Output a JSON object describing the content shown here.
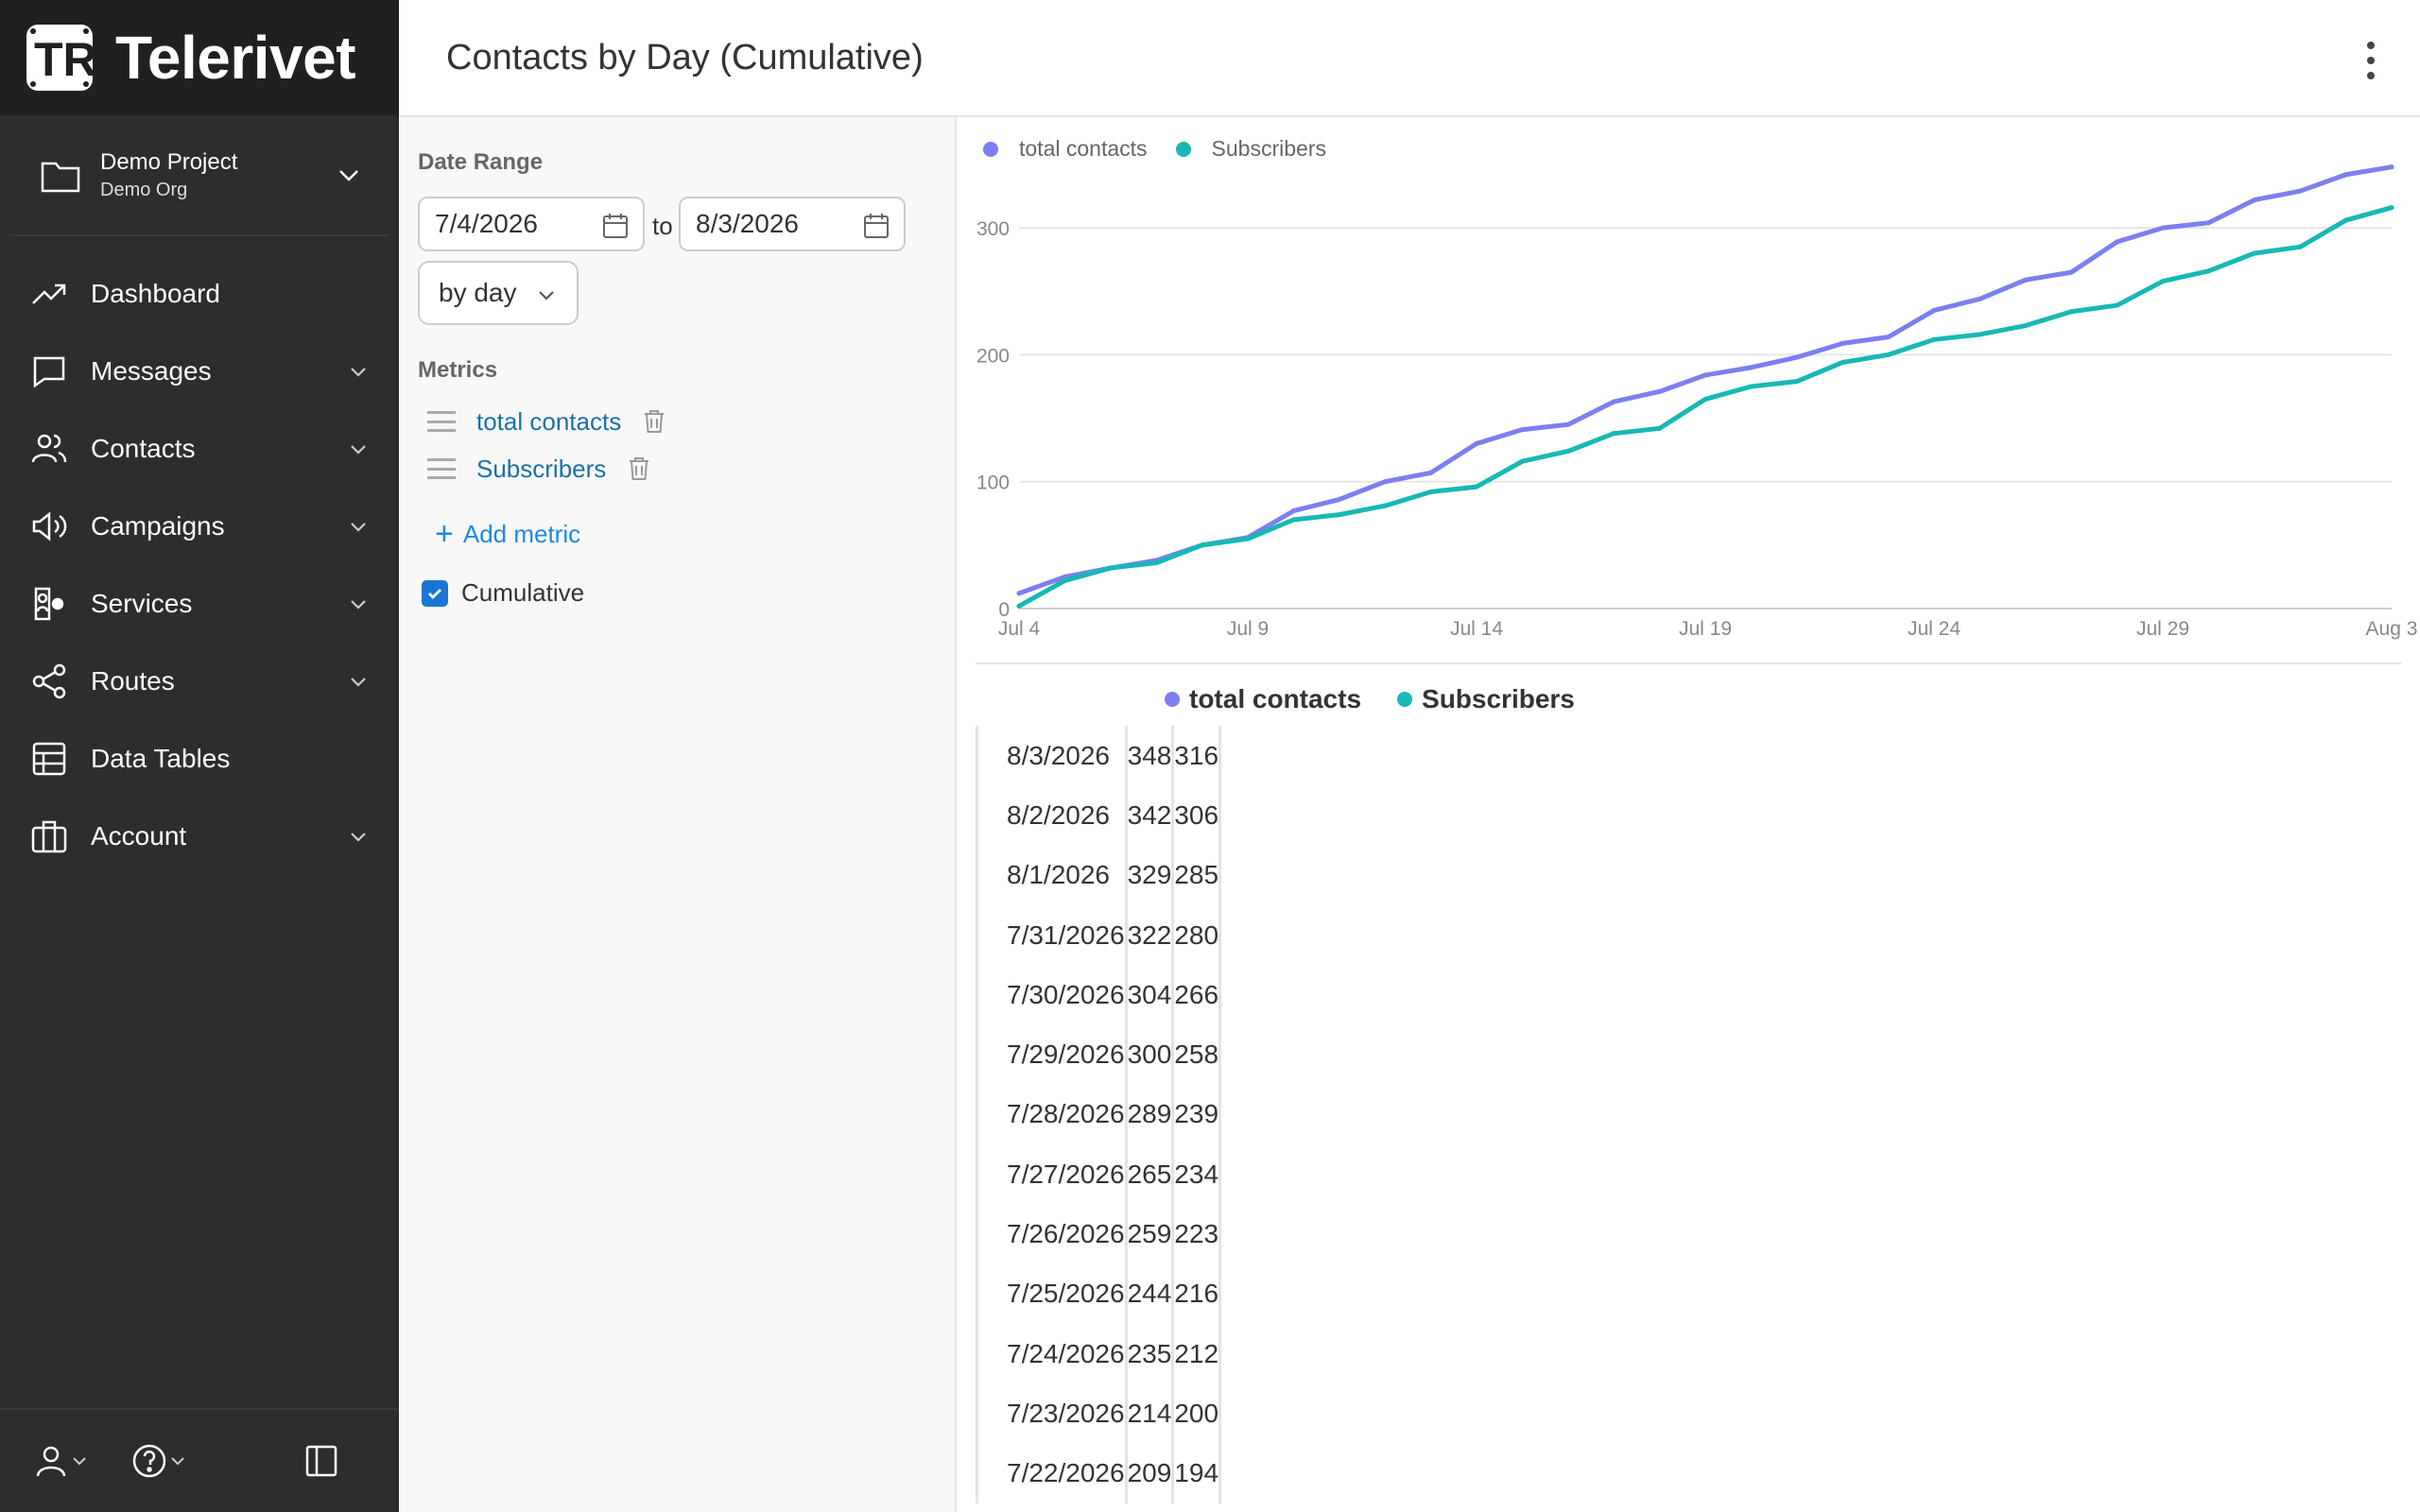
{
  "app": {
    "brand": "Telerivet"
  },
  "project": {
    "name": "Demo Project",
    "org": "Demo Org"
  },
  "nav": [
    {
      "label": "Dashboard",
      "icon": "trend-up-icon",
      "has_menu": false
    },
    {
      "label": "Messages",
      "icon": "chat-bubble-icon",
      "has_menu": true
    },
    {
      "label": "Contacts",
      "icon": "people-icon",
      "has_menu": true
    },
    {
      "label": "Campaigns",
      "icon": "megaphone-icon",
      "has_menu": true
    },
    {
      "label": "Services",
      "icon": "services-icon",
      "has_menu": true
    },
    {
      "label": "Routes",
      "icon": "share-icon",
      "has_menu": true
    },
    {
      "label": "Data Tables",
      "icon": "table-icon",
      "has_menu": false
    },
    {
      "label": "Account",
      "icon": "briefcase-icon",
      "has_menu": true
    }
  ],
  "header": {
    "title": "Contacts by Day (Cumulative)"
  },
  "filters": {
    "date_range_label": "Date Range",
    "from": "7/4/2026",
    "to_text": "to",
    "to": "8/3/2026",
    "interval": "by day",
    "metrics_label": "Metrics",
    "metrics": [
      "total contacts",
      "Subscribers"
    ],
    "add_metric": "Add metric",
    "cumulative_label": "Cumulative",
    "cumulative_checked": true
  },
  "colors": {
    "total_contacts": "#7b7ff0",
    "subscribers": "#17b8b5",
    "sidebar": "#2d2d2d"
  },
  "chart_data": {
    "type": "line",
    "x": [
      "Jul 4",
      "Jul 5",
      "Jul 6",
      "Jul 7",
      "Jul 8",
      "Jul 9",
      "Jul 10",
      "Jul 11",
      "Jul 12",
      "Jul 13",
      "Jul 14",
      "Jul 15",
      "Jul 16",
      "Jul 17",
      "Jul 18",
      "Jul 19",
      "Jul 20",
      "Jul 21",
      "Jul 22",
      "Jul 23",
      "Jul 24",
      "Jul 25",
      "Jul 26",
      "Jul 27",
      "Jul 28",
      "Jul 29",
      "Jul 30",
      "Jul 31",
      "Aug 1",
      "Aug 2",
      "Aug 3"
    ],
    "x_ticks": [
      "Jul 4",
      "Jul 9",
      "Jul 14",
      "Jul 19",
      "Jul 24",
      "Jul 29",
      "Aug 3"
    ],
    "y_ticks": [
      0,
      100,
      200,
      300
    ],
    "ylim": [
      0,
      350
    ],
    "legend_position": "top-left",
    "series": [
      {
        "name": "total contacts",
        "values": [
          12,
          25,
          32,
          38,
          50,
          56,
          77,
          86,
          100,
          107,
          130,
          141,
          145,
          163,
          171,
          184,
          190,
          198,
          209,
          214,
          235,
          244,
          259,
          265,
          289,
          300,
          304,
          322,
          329,
          342,
          348
        ]
      },
      {
        "name": "Subscribers",
        "values": [
          2,
          22,
          32,
          36,
          50,
          55,
          70,
          74,
          81,
          92,
          96,
          116,
          124,
          138,
          142,
          165,
          175,
          179,
          194,
          200,
          212,
          216,
          223,
          234,
          239,
          258,
          266,
          280,
          285,
          306,
          316
        ]
      }
    ]
  },
  "table": {
    "headers": [
      "total contacts",
      "Subscribers"
    ],
    "rows": [
      {
        "date": "8/3/2026",
        "total": "348",
        "subs": "316"
      },
      {
        "date": "8/2/2026",
        "total": "342",
        "subs": "306"
      },
      {
        "date": "8/1/2026",
        "total": "329",
        "subs": "285"
      },
      {
        "date": "7/31/2026",
        "total": "322",
        "subs": "280"
      },
      {
        "date": "7/30/2026",
        "total": "304",
        "subs": "266"
      },
      {
        "date": "7/29/2026",
        "total": "300",
        "subs": "258"
      },
      {
        "date": "7/28/2026",
        "total": "289",
        "subs": "239"
      },
      {
        "date": "7/27/2026",
        "total": "265",
        "subs": "234"
      },
      {
        "date": "7/26/2026",
        "total": "259",
        "subs": "223"
      },
      {
        "date": "7/25/2026",
        "total": "244",
        "subs": "216"
      },
      {
        "date": "7/24/2026",
        "total": "235",
        "subs": "212"
      },
      {
        "date": "7/23/2026",
        "total": "214",
        "subs": "200"
      },
      {
        "date": "7/22/2026",
        "total": "209",
        "subs": "194"
      }
    ]
  }
}
